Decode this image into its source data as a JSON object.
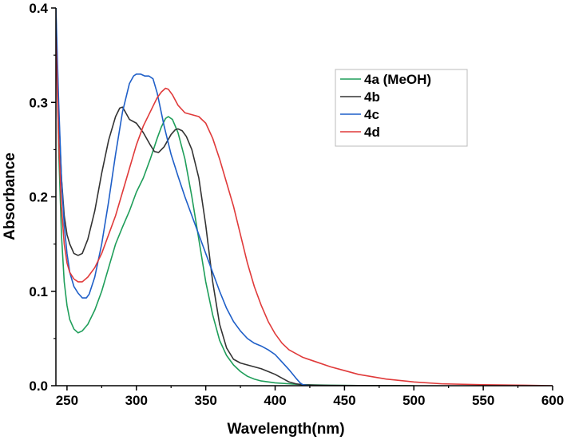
{
  "chart_data": {
    "type": "line",
    "xlabel": "Wavelength(nm)",
    "ylabel": "Absorbance",
    "xlim": [
      242,
      600
    ],
    "ylim": [
      0,
      0.4
    ],
    "x_ticks": [
      "250",
      "300",
      "350",
      "400",
      "450",
      "500",
      "550",
      "600"
    ],
    "y_ticks": [
      "0.0",
      "0.1",
      "0.2",
      "0.3",
      "0.4"
    ],
    "grid": false,
    "legend": "top-right",
    "series": [
      {
        "name": "4a (MeOH)",
        "color": "#1f9e5a",
        "x": [
          242,
          244,
          246,
          248,
          250,
          252,
          255,
          258,
          261,
          265,
          270,
          275,
          280,
          285,
          290,
          295,
          300,
          305,
          310,
          315,
          318,
          321,
          323,
          326,
          330,
          335,
          340,
          345,
          350,
          355,
          360,
          365,
          370,
          375,
          380,
          385,
          390,
          400,
          410,
          420,
          440,
          460,
          480,
          500
        ],
        "values": [
          0.4,
          0.25,
          0.16,
          0.11,
          0.085,
          0.07,
          0.06,
          0.056,
          0.058,
          0.065,
          0.08,
          0.1,
          0.125,
          0.15,
          0.168,
          0.185,
          0.205,
          0.22,
          0.24,
          0.262,
          0.274,
          0.283,
          0.285,
          0.282,
          0.268,
          0.24,
          0.2,
          0.155,
          0.11,
          0.075,
          0.048,
          0.032,
          0.022,
          0.015,
          0.01,
          0.007,
          0.005,
          0.003,
          0.002,
          0.001,
          0.0005,
          0.0002,
          0.0001,
          0.0
        ]
      },
      {
        "name": "4b",
        "color": "#333333",
        "x": [
          242,
          244,
          246,
          248,
          250,
          252,
          255,
          258,
          261,
          265,
          270,
          275,
          280,
          285,
          288,
          290,
          292,
          295,
          300,
          305,
          310,
          313,
          316,
          320,
          325,
          328,
          330,
          333,
          336,
          340,
          345,
          350,
          355,
          360,
          365,
          370,
          375,
          380,
          385,
          390,
          395,
          400,
          405,
          410,
          415,
          420,
          430,
          440,
          460,
          480,
          490
        ],
        "values": [
          0.39,
          0.29,
          0.22,
          0.18,
          0.16,
          0.15,
          0.14,
          0.138,
          0.14,
          0.155,
          0.185,
          0.225,
          0.26,
          0.285,
          0.294,
          0.295,
          0.29,
          0.282,
          0.278,
          0.268,
          0.255,
          0.248,
          0.247,
          0.253,
          0.266,
          0.271,
          0.272,
          0.27,
          0.264,
          0.25,
          0.22,
          0.17,
          0.11,
          0.065,
          0.04,
          0.028,
          0.024,
          0.022,
          0.02,
          0.018,
          0.015,
          0.012,
          0.008,
          0.004,
          0.002,
          0.001,
          0.0005,
          0.0003,
          0.0002,
          0.0001,
          0.0
        ]
      },
      {
        "name": "4c",
        "color": "#1f5fc8",
        "x": [
          242,
          244,
          246,
          248,
          250,
          252,
          255,
          258,
          261,
          264,
          266,
          270,
          275,
          280,
          285,
          290,
          295,
          298,
          300,
          303,
          306,
          309,
          312,
          315,
          320,
          325,
          330,
          335,
          340,
          345,
          350,
          355,
          360,
          365,
          370,
          375,
          380,
          385,
          390,
          395,
          400,
          405,
          410,
          415,
          418,
          420,
          425
        ],
        "values": [
          0.4,
          0.3,
          0.22,
          0.17,
          0.14,
          0.12,
          0.105,
          0.098,
          0.093,
          0.093,
          0.097,
          0.115,
          0.15,
          0.195,
          0.245,
          0.29,
          0.32,
          0.328,
          0.33,
          0.33,
          0.328,
          0.328,
          0.325,
          0.31,
          0.275,
          0.245,
          0.222,
          0.2,
          0.18,
          0.16,
          0.14,
          0.12,
          0.1,
          0.082,
          0.068,
          0.058,
          0.05,
          0.045,
          0.042,
          0.038,
          0.033,
          0.025,
          0.017,
          0.008,
          0.003,
          0.001,
          0.0
        ]
      },
      {
        "name": "4d",
        "color": "#e03a3a",
        "x": [
          242,
          244,
          246,
          248,
          250,
          252,
          255,
          258,
          261,
          265,
          270,
          275,
          280,
          285,
          290,
          295,
          300,
          305,
          310,
          315,
          318,
          321,
          323,
          326,
          330,
          335,
          340,
          345,
          350,
          355,
          360,
          365,
          370,
          375,
          380,
          385,
          390,
          395,
          400,
          405,
          410,
          420,
          430,
          440,
          450,
          460,
          480,
          500,
          520,
          550,
          580,
          600
        ],
        "values": [
          0.37,
          0.26,
          0.19,
          0.15,
          0.13,
          0.12,
          0.113,
          0.11,
          0.11,
          0.115,
          0.125,
          0.14,
          0.16,
          0.18,
          0.205,
          0.23,
          0.255,
          0.275,
          0.29,
          0.305,
          0.311,
          0.315,
          0.314,
          0.308,
          0.297,
          0.289,
          0.287,
          0.285,
          0.278,
          0.262,
          0.24,
          0.215,
          0.19,
          0.16,
          0.13,
          0.105,
          0.085,
          0.068,
          0.055,
          0.045,
          0.038,
          0.03,
          0.025,
          0.02,
          0.016,
          0.012,
          0.007,
          0.004,
          0.002,
          0.001,
          0.0005,
          0.0
        ]
      }
    ]
  }
}
